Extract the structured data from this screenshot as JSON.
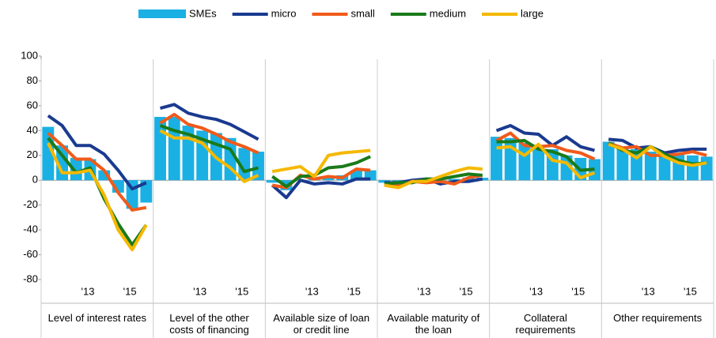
{
  "chart_data": {
    "type": "bar",
    "groups": [
      "Level of interest rates",
      "Level of the other costs of financing",
      "Available size of loan or credit line",
      "Available maturity of the loan",
      "Collateral requirements",
      "Other requirements"
    ],
    "categories": [
      null,
      null,
      null,
      "'13",
      null,
      null,
      "'15",
      null
    ],
    "ylim": [
      -80,
      100
    ],
    "yticks": [
      -80,
      -60,
      -40,
      -20,
      0,
      20,
      40,
      60,
      80,
      100
    ],
    "series": [
      {
        "name": "SMEs",
        "type": "bar",
        "color": "#1ab0e4",
        "values": [
          [
            43,
            28,
            18,
            17,
            8,
            -10,
            -23,
            -18
          ],
          [
            51,
            51,
            44,
            40,
            38,
            34,
            26,
            23
          ],
          [
            -2,
            -8,
            0,
            2,
            3,
            4,
            8,
            8
          ],
          [
            -2,
            -2,
            0,
            1,
            0,
            1,
            2,
            2
          ],
          [
            35,
            34,
            30,
            28,
            25,
            20,
            18,
            17
          ],
          [
            31,
            27,
            25,
            23,
            22,
            21,
            20,
            19
          ]
        ]
      },
      {
        "name": "micro",
        "type": "line",
        "color": "#1a3a8f",
        "values": [
          [
            52,
            44,
            28,
            28,
            21,
            8,
            -7,
            -2
          ],
          [
            58,
            61,
            54,
            51,
            49,
            45,
            39,
            33
          ],
          [
            -4,
            -14,
            0,
            -3,
            -2,
            -3,
            1,
            1
          ],
          [
            -2,
            -2,
            0,
            1,
            -3,
            -1,
            -1,
            1
          ],
          [
            40,
            44,
            38,
            37,
            28,
            35,
            27,
            24
          ],
          [
            33,
            32,
            26,
            27,
            22,
            24,
            25,
            25
          ]
        ]
      },
      {
        "name": "small",
        "type": "line",
        "color": "#f05a1a",
        "values": [
          [
            38,
            28,
            17,
            17,
            8,
            -10,
            -24,
            -22
          ],
          [
            46,
            53,
            45,
            42,
            37,
            31,
            27,
            22
          ],
          [
            -4,
            -6,
            4,
            1,
            3,
            2,
            9,
            8
          ],
          [
            -3,
            -4,
            -1,
            -2,
            -1,
            -3,
            2,
            4
          ],
          [
            32,
            38,
            28,
            27,
            28,
            24,
            22,
            17
          ],
          [
            30,
            26,
            27,
            20,
            20,
            21,
            23,
            20
          ]
        ]
      },
      {
        "name": "medium",
        "type": "line",
        "color": "#1a7a1a",
        "values": [
          [
            34,
            20,
            6,
            10,
            -15,
            -35,
            -52,
            -36
          ],
          [
            44,
            40,
            37,
            33,
            29,
            25,
            7,
            10
          ],
          [
            3,
            -5,
            3,
            4,
            10,
            11,
            14,
            19
          ],
          [
            -3,
            -2,
            -2,
            1,
            1,
            3,
            5,
            4
          ],
          [
            31,
            31,
            32,
            25,
            23,
            19,
            8,
            9
          ],
          [
            30,
            24,
            22,
            27,
            21,
            16,
            13,
            14
          ]
        ]
      },
      {
        "name": "large",
        "type": "line",
        "color": "#f5b800",
        "values": [
          [
            30,
            6,
            6,
            8,
            -12,
            -40,
            -56,
            -36
          ],
          [
            40,
            34,
            34,
            30,
            18,
            10,
            -1,
            4
          ],
          [
            7,
            9,
            11,
            3,
            20,
            22,
            23,
            24
          ],
          [
            -4,
            -6,
            -1,
            -1,
            3,
            7,
            10,
            9
          ],
          [
            26,
            27,
            20,
            29,
            16,
            14,
            2,
            6
          ],
          [
            29,
            25,
            18,
            27,
            19,
            14,
            12,
            14
          ]
        ]
      }
    ]
  }
}
